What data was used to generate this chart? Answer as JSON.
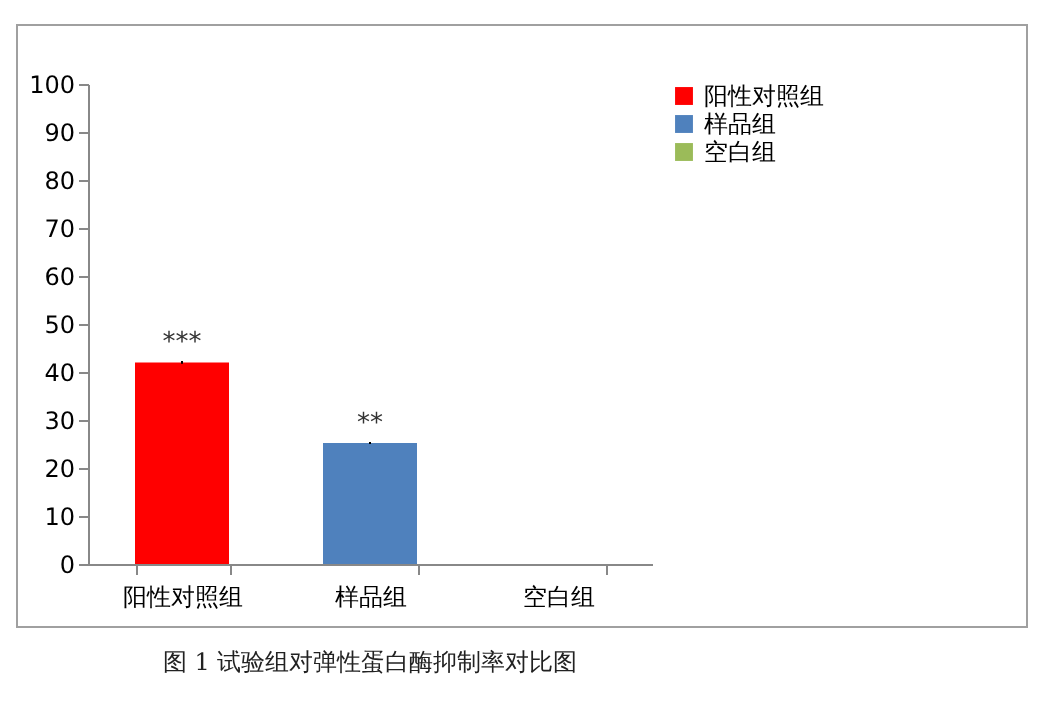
{
  "chart_data": {
    "type": "bar",
    "categories": [
      "阳性对照组",
      "样品组",
      "空白组"
    ],
    "series": [
      {
        "name": "阳性对照组",
        "color": "#ff0000",
        "values": [
          42,
          null,
          null
        ],
        "errors": [
          0.3,
          null,
          null
        ]
      },
      {
        "name": "样品组",
        "color": "#4f81bd",
        "values": [
          null,
          25.2,
          null
        ],
        "errors": [
          null,
          0.2,
          null
        ]
      },
      {
        "name": "空白组",
        "color": "#9bbb59",
        "values": [
          null,
          null,
          0
        ]
      }
    ],
    "ylim": [
      0,
      100
    ],
    "yticks": [
      0,
      10,
      20,
      30,
      40,
      50,
      60,
      70,
      80,
      90,
      100
    ],
    "grid": false,
    "legend": "right",
    "annotations": [
      {
        "text": "***",
        "x": "阳性对照组",
        "y": 42
      },
      {
        "text": "**",
        "x": "样品组",
        "y": 25.2
      },
      "图 1  试验组对弹性蛋白酶抑制率对比图"
    ]
  }
}
